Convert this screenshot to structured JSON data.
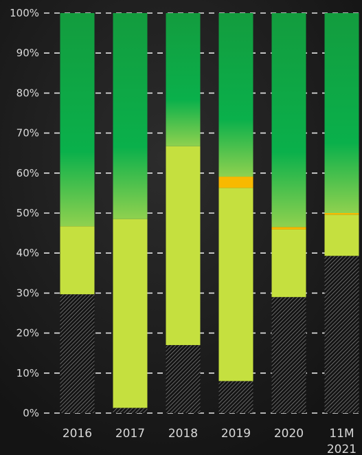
{
  "chart_data": {
    "type": "bar",
    "stacked": true,
    "title": "",
    "xlabel": "",
    "ylabel": "",
    "ylim": [
      0,
      100
    ],
    "y_ticks": [
      "0%",
      "10%",
      "20%",
      "30%",
      "40%",
      "50%",
      "60%",
      "70%",
      "80%",
      "90%",
      "100%"
    ],
    "grid": true,
    "categories": [
      {
        "line1": "2016",
        "line2": ""
      },
      {
        "line1": "2017",
        "line2": ""
      },
      {
        "line1": "2018",
        "line2": ""
      },
      {
        "line1": "2019",
        "line2": ""
      },
      {
        "line1": "2020",
        "line2": ""
      },
      {
        "line1": "11M",
        "line2": "2021"
      }
    ],
    "series": [
      {
        "fill": "hatch",
        "values": [
          29.7,
          1.3,
          17.0,
          8.0,
          29.0,
          39.3
        ]
      },
      {
        "color": "#c5e03f",
        "values": [
          17.0,
          47.2,
          49.7,
          48.3,
          16.9,
          10.3
        ]
      },
      {
        "color": "#f8b900",
        "values": [
          0,
          0,
          0,
          2.8,
          0.6,
          0.4
        ]
      },
      {
        "color": "#12a84a",
        "values": [
          53.3,
          51.5,
          33.3,
          40.9,
          53.5,
          50.0
        ]
      }
    ]
  }
}
